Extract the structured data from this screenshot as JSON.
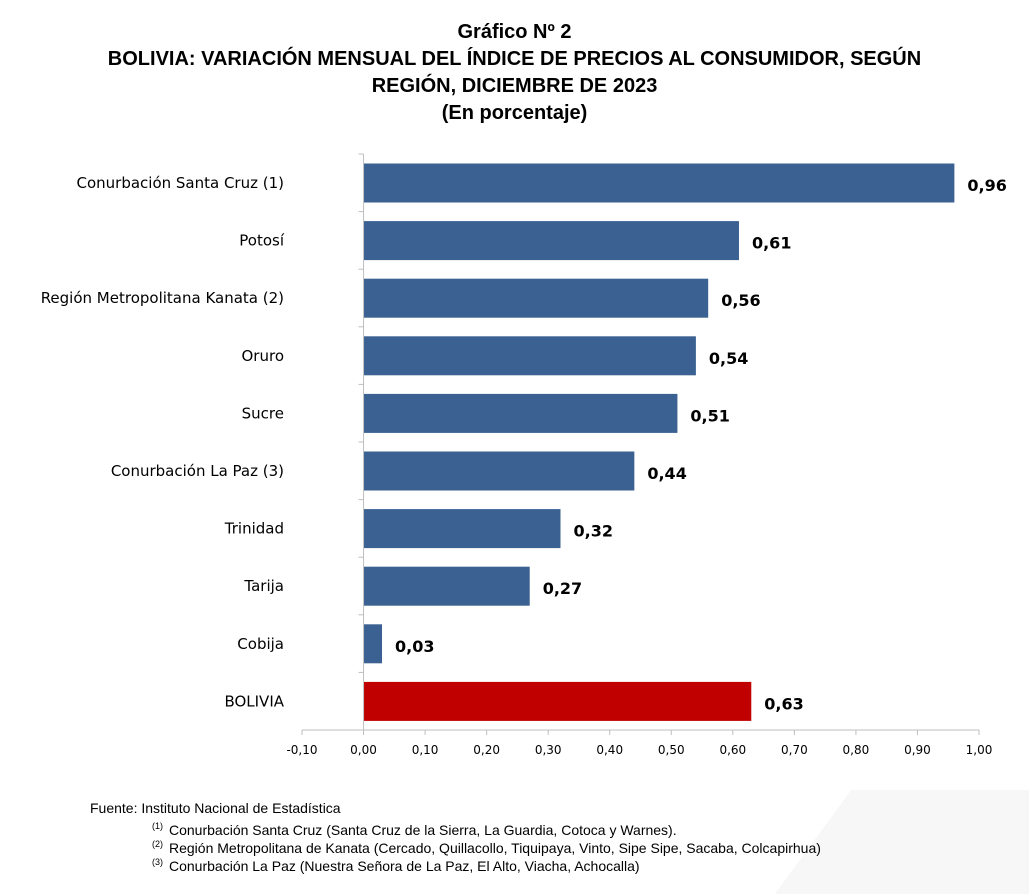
{
  "header": {
    "line1": "Gráfico Nº 2",
    "line2": "BOLIVIA: VARIACIÓN MENSUAL DEL ÍNDICE DE PRECIOS AL CONSUMIDOR, SEGÚN",
    "line3": "REGIÓN, DICIEMBRE DE 2023",
    "line4": "(En porcentaje)"
  },
  "chart_data": {
    "type": "bar",
    "orientation": "horizontal",
    "title": "BOLIVIA: VARIACIÓN MENSUAL DEL ÍNDICE DE PRECIOS AL CONSUMIDOR, SEGÚN REGIÓN, DICIEMBRE DE 2023",
    "categories": [
      "Conurbación Santa Cruz (1)",
      "Potosí",
      "Región Metropolitana Kanata (2)",
      "Oruro",
      "Sucre",
      "Conurbación La Paz (3)",
      "Trinidad",
      "Tarija",
      "Cobija",
      "BOLIVIA"
    ],
    "values": [
      0.96,
      0.61,
      0.56,
      0.54,
      0.51,
      0.44,
      0.32,
      0.27,
      0.03,
      0.63
    ],
    "value_labels": [
      "0,96",
      "0,61",
      "0,56",
      "0,54",
      "0,51",
      "0,44",
      "0,32",
      "0,27",
      "0,03",
      "0,63"
    ],
    "bar_colors": [
      "#3b6192",
      "#3b6192",
      "#3b6192",
      "#3b6192",
      "#3b6192",
      "#3b6192",
      "#3b6192",
      "#3b6192",
      "#3b6192",
      "#c00000"
    ],
    "xlim": [
      -0.1,
      1.0
    ],
    "x_ticks": [
      -0.1,
      0.0,
      0.1,
      0.2,
      0.3,
      0.4,
      0.5,
      0.6,
      0.7,
      0.8,
      0.9,
      1.0
    ],
    "x_tick_labels": [
      "-0,10",
      "0,00",
      "0,10",
      "0,20",
      "0,30",
      "0,40",
      "0,50",
      "0,60",
      "0,70",
      "0,80",
      "0,90",
      "1,00"
    ],
    "grid": false,
    "legend": "none",
    "axis_color": "#bfbfbf"
  },
  "footer": {
    "source": "Fuente: Instituto Nacional de Estadística",
    "notes": [
      {
        "mark": "(1)",
        "text": "Conurbación Santa Cruz (Santa Cruz de la Sierra, La Guardia, Cotoca y Warnes)."
      },
      {
        "mark": "(2)",
        "text": "Región Metropolitana de Kanata (Cercado, Quillacollo, Tiquipaya, Vinto, Sipe Sipe, Sacaba, Colcapirhua)"
      },
      {
        "mark": "(3)",
        "text": "Conurbación La Paz (Nuestra Señora de La Paz, El Alto, Viacha, Achocalla)"
      }
    ]
  }
}
